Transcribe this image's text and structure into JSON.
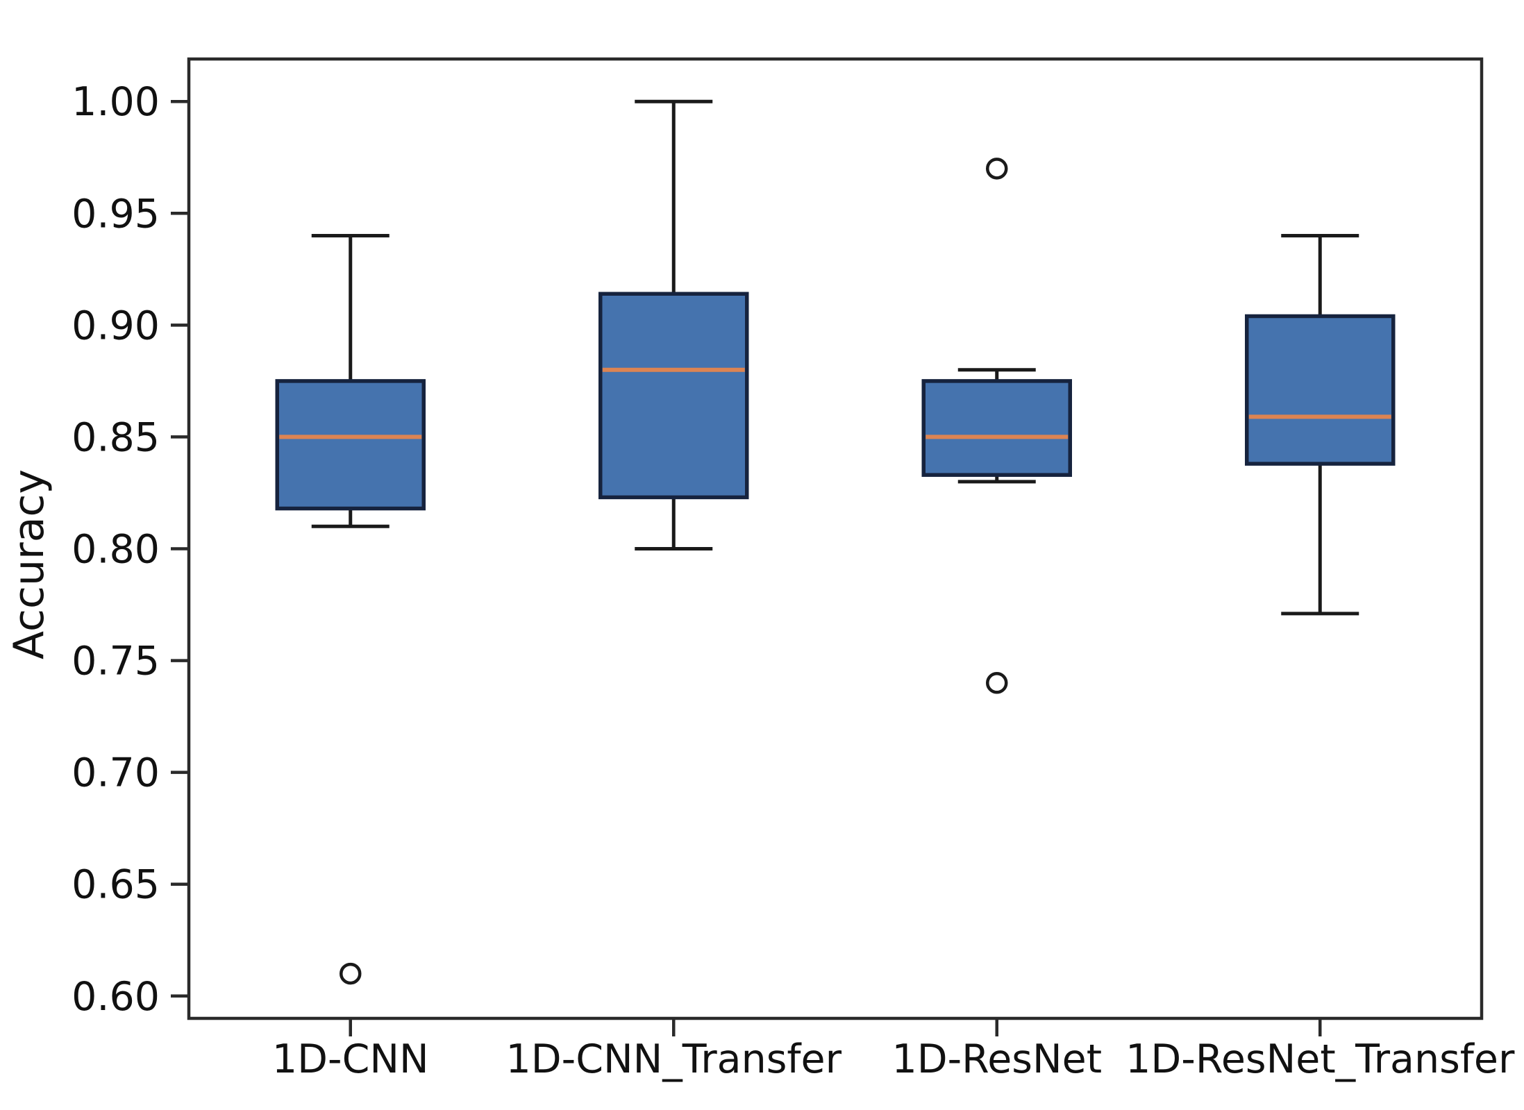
{
  "chart_data": {
    "type": "boxplot",
    "title": "",
    "xlabel": "",
    "ylabel": "Accuracy",
    "categories": [
      "1D-CNN",
      "1D-CNN_Transfer",
      "1D-ResNet",
      "1D-ResNet_Transfer"
    ],
    "series": [
      {
        "name": "1D-CNN",
        "whisker_low": 0.81,
        "q1": 0.818,
        "median": 0.85,
        "q3": 0.875,
        "whisker_high": 0.94,
        "outliers": [
          0.61
        ]
      },
      {
        "name": "1D-CNN_Transfer",
        "whisker_low": 0.8,
        "q1": 0.823,
        "median": 0.88,
        "q3": 0.914,
        "whisker_high": 1.0,
        "outliers": []
      },
      {
        "name": "1D-ResNet",
        "whisker_low": 0.83,
        "q1": 0.833,
        "median": 0.85,
        "q3": 0.875,
        "whisker_high": 0.88,
        "outliers": [
          0.97,
          0.74
        ]
      },
      {
        "name": "1D-ResNet_Transfer",
        "whisker_low": 0.771,
        "q1": 0.838,
        "median": 0.859,
        "q3": 0.904,
        "whisker_high": 0.94,
        "outliers": []
      }
    ],
    "y_ticks": [
      {
        "value": 1.0,
        "label": "1.00"
      },
      {
        "value": 0.95,
        "label": "0.95"
      },
      {
        "value": 0.9,
        "label": "0.90"
      },
      {
        "value": 0.85,
        "label": "0.85"
      },
      {
        "value": 0.8,
        "label": "0.80"
      },
      {
        "value": 0.75,
        "label": "0.75"
      },
      {
        "value": 0.7,
        "label": "0.70"
      },
      {
        "value": 0.65,
        "label": "0.65"
      },
      {
        "value": 0.6,
        "label": "0.60"
      }
    ],
    "ylim": [
      0.59,
      1.019
    ],
    "xlim": [
      0.5,
      4.5
    ],
    "grid": false,
    "legend": null,
    "colors": {
      "box_fill": "#4573AE",
      "box_edge": "#16233E",
      "whisker": "#1A1A1A",
      "cap": "#1A1A1A",
      "median": "#DD8452",
      "outlier_stroke": "#1A1A1A",
      "spine": "#2A2A2A",
      "text": "#111111",
      "background": "#FFFFFF"
    }
  }
}
